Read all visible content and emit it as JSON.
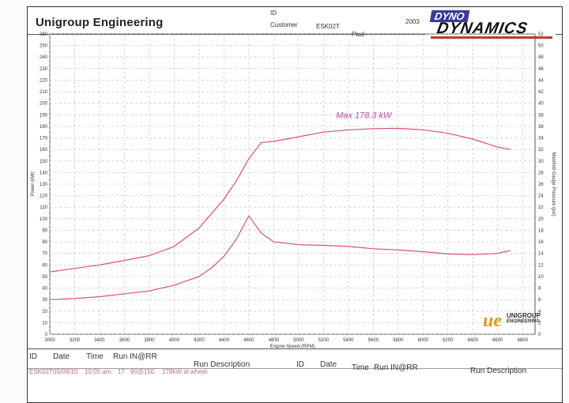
{
  "header": {
    "company": "Unigroup Engineering",
    "id_label": "ID",
    "id_value": "ESK02T",
    "customer_label": "Customer",
    "customer_value": "Paul",
    "page_no": "2003",
    "logo_line1": "DYNO",
    "logo_line2": "DYNAMICS"
  },
  "stamp": {
    "mark": "ue",
    "line1": "UNIGROUP",
    "line2": "ENGINEERING"
  },
  "footer": {
    "columns_left": [
      "ID",
      "Date",
      "Time",
      "Run IN@RR",
      "Run Description"
    ],
    "columns_right": [
      "ID",
      "Date",
      "Time",
      "Run IN@RR",
      "Run Description"
    ],
    "row": [
      "ESK02T",
      "05/08/10",
      "10:05 am",
      "17",
      "90@150",
      "178kW at wheel"
    ]
  },
  "colors": {
    "curve": "#d94f7a",
    "annotation": "#c0509a",
    "grid": "#bbbbbb"
  },
  "chart_data": {
    "type": "line",
    "xlabel": "Engine Speed (RPM)",
    "ylabel": "Power (kW)",
    "y2label": "Manifold Gauge Pressure (psi)",
    "xlim": [
      3000,
      6900
    ],
    "ylim": [
      0,
      260
    ],
    "y2lim": [
      0,
      52
    ],
    "grid": true,
    "xticks": [
      3000,
      3200,
      3400,
      3600,
      3800,
      4000,
      4200,
      4400,
      4600,
      4800,
      5000,
      5200,
      5400,
      5600,
      5800,
      6000,
      6200,
      6400,
      6600,
      6800
    ],
    "yticks": [
      0,
      10,
      20,
      30,
      40,
      50,
      60,
      70,
      80,
      90,
      100,
      110,
      120,
      130,
      140,
      150,
      160,
      170,
      180,
      190,
      200,
      210,
      220,
      230,
      240,
      250,
      260
    ],
    "y2ticks": [
      0,
      2,
      4,
      6,
      8,
      10,
      12,
      14,
      16,
      18,
      20,
      22,
      24,
      26,
      28,
      30,
      32,
      34,
      36,
      38,
      40,
      42,
      44,
      46,
      48,
      50,
      52
    ],
    "annotation": "Max 178.3 kW",
    "series": [
      {
        "axis": "left",
        "x": [
          3000,
          3200,
          3400,
          3600,
          3800,
          4000,
          4200,
          4400,
          4500,
          4600,
          4700,
          4800,
          5000,
          5200,
          5400,
          5600,
          5800,
          6000,
          6200,
          6400,
          6600,
          6700
        ],
        "y": [
          54,
          57,
          60,
          64,
          68,
          76,
          92,
          117,
          133,
          152,
          166,
          167,
          171,
          175,
          177,
          178,
          178.3,
          177,
          174,
          169,
          162,
          160
        ]
      },
      {
        "axis": "right",
        "x": [
          3000,
          3200,
          3400,
          3600,
          3800,
          4000,
          4200,
          4300,
          4400,
          4500,
          4600,
          4700,
          4800,
          5000,
          5200,
          5400,
          5600,
          5800,
          6000,
          6200,
          6400,
          6600,
          6700
        ],
        "y": [
          6,
          6.2,
          6.5,
          7,
          7.5,
          8.5,
          10,
          11.5,
          13.5,
          16.5,
          20.5,
          17.5,
          16,
          15.5,
          15.4,
          15.2,
          14.8,
          14.6,
          14.3,
          13.9,
          13.8,
          14,
          14.5
        ]
      }
    ]
  }
}
